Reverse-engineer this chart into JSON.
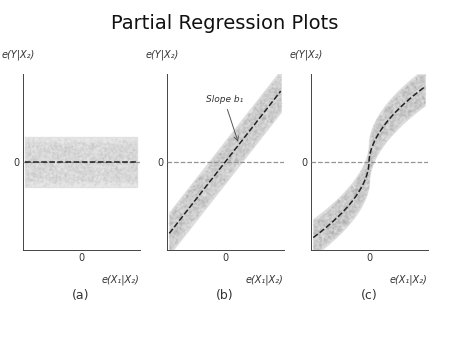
{
  "title": "Partial Regression Plots",
  "title_fontsize": 14,
  "background_color": "#ffffff",
  "subplot_labels": [
    "(a)",
    "(b)",
    "(c)"
  ],
  "ylabel": "e(Y|X₂)",
  "xlabel": "e(X₁|X₂)",
  "slope_label": "Slope b₁",
  "band_color_a": "#c8c8c8",
  "band_color_b": "#c8c8c8",
  "band_color_c": "#c8c8c8",
  "line_color": "#222222",
  "dashed_color": "#888888",
  "label_fontsize": 7,
  "sublabel_fontsize": 9
}
